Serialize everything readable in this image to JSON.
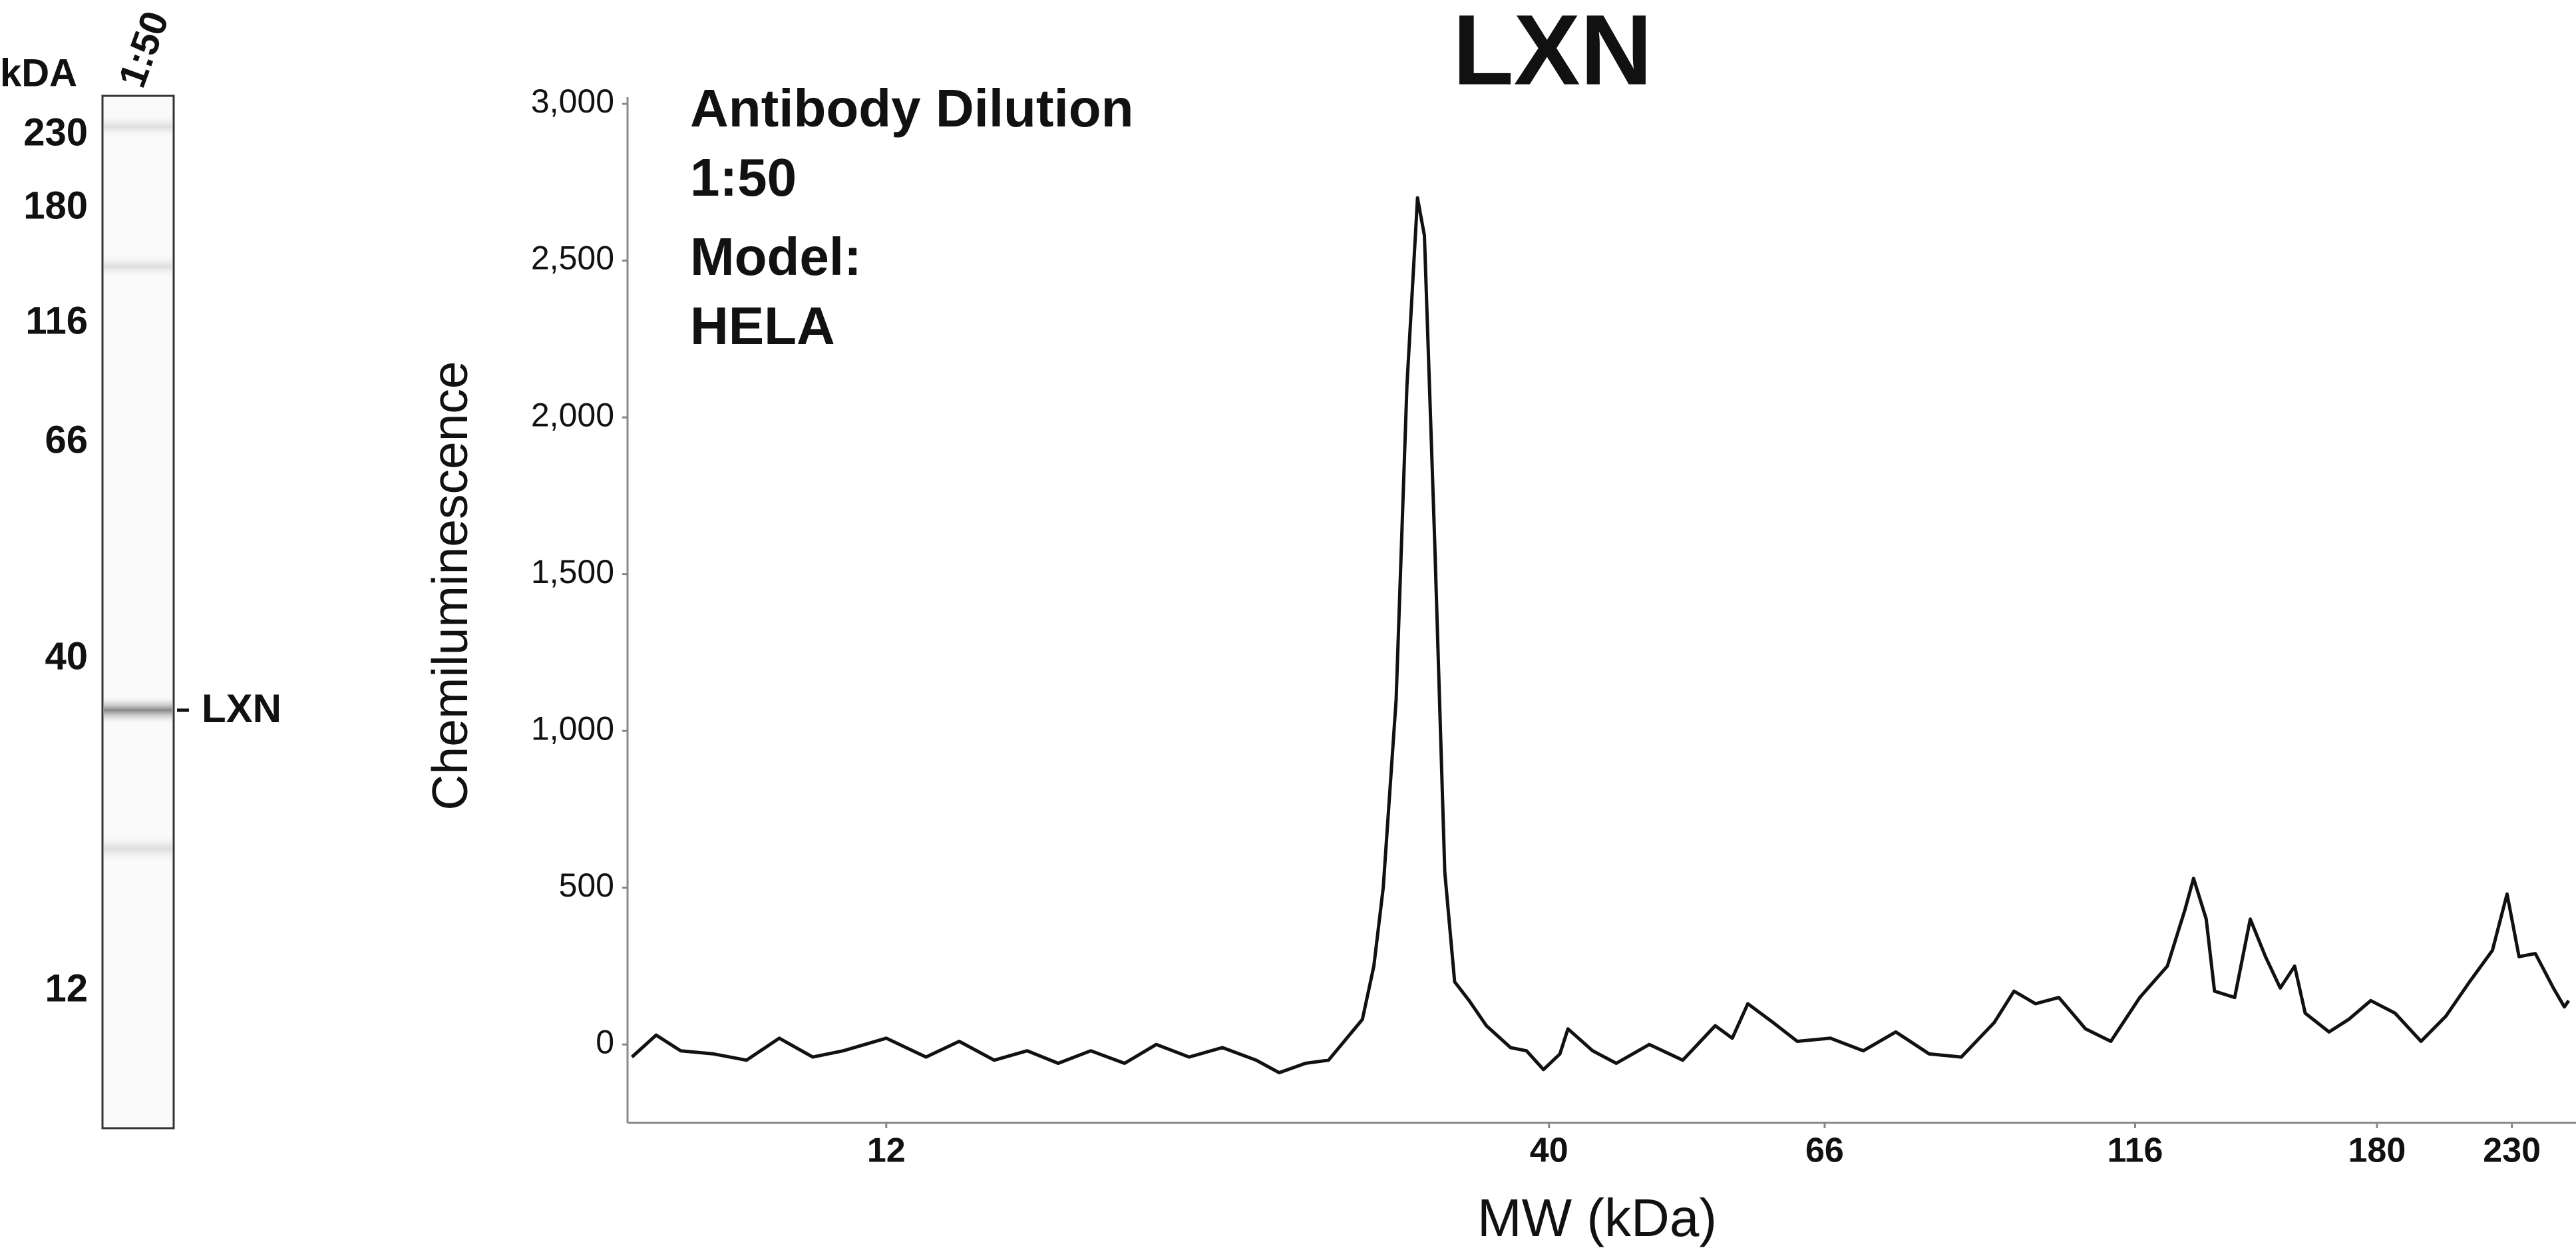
{
  "chart_data": {
    "type": "line",
    "title": "LXN",
    "annotations": [
      "Antibody Dilution",
      "1:50",
      "Model:",
      "HELA"
    ],
    "x_label": "MW (kDa)",
    "y_label": "Chemiluminescence",
    "x": [
      7.56,
      7.9,
      8.26,
      8.77,
      9.31,
      9.88,
      10.5,
      11.1,
      12,
      12.9,
      13.7,
      14.6,
      15.5,
      16.4,
      17.4,
      18.5,
      19.6,
      20.8,
      22.1,
      23.5,
      24.5,
      25.7,
      26.8,
      27.7,
      28.5,
      29.1,
      29.6,
      30.3,
      30.9,
      31.5,
      31.9,
      32.5,
      33.1,
      33.7,
      34.6,
      35.7,
      37.3,
      38.4,
      39.6,
      40.8,
      41.4,
      43.3,
      45.2,
      48,
      51,
      54.1,
      55.8,
      57.4,
      60.1,
      62.8,
      66.7,
      70.8,
      75.1,
      79.8,
      84.6,
      89.8,
      93.1,
      96.8,
      101,
      106,
      111,
      117,
      123,
      127,
      129,
      132,
      134,
      139,
      143,
      147,
      151,
      155,
      158,
      165,
      171,
      178,
      186,
      195,
      204,
      213,
      222,
      228,
      233,
      240,
      248,
      253,
      255
    ],
    "values": [
      -40,
      30,
      -20,
      -30,
      -50,
      20,
      -40,
      -20,
      20,
      -40,
      10,
      -50,
      -20,
      -60,
      -20,
      -60,
      0,
      -40,
      -10,
      -50,
      -90,
      -60,
      -50,
      20,
      80,
      250,
      500,
      1100,
      2100,
      2700,
      2580,
      1600,
      550,
      200,
      140,
      60,
      -10,
      -20,
      -80,
      -30,
      50,
      -20,
      -60,
      0,
      -50,
      60,
      20,
      130,
      70,
      10,
      20,
      -20,
      40,
      -30,
      -40,
      70,
      170,
      130,
      150,
      50,
      10,
      150,
      250,
      430,
      530,
      400,
      170,
      150,
      400,
      280,
      180,
      250,
      100,
      40,
      80,
      140,
      100,
      10,
      90,
      200,
      300,
      480,
      280,
      290,
      180,
      120,
      140
    ],
    "color": "#111111",
    "xscale": "log",
    "xlim": [
      7.5,
      255
    ],
    "xticks": [
      12,
      40,
      66,
      116,
      180,
      230
    ],
    "ylim": [
      -250,
      3000
    ],
    "yticks": [
      0,
      500,
      {
        "value": 1000,
        "label": "1,000"
      },
      {
        "value": 1500,
        "label": "1,500"
      },
      {
        "value": 2000,
        "label": "2,000"
      },
      {
        "value": 2500,
        "label": "2,500"
      },
      {
        "value": 3000,
        "label": "3,000"
      }
    ],
    "grid": false
  },
  "blot": {
    "unit_label": "kDA",
    "lane_label": "1:50",
    "markers": [
      230,
      180,
      116,
      66,
      40,
      12
    ],
    "band_label": "LXN"
  }
}
